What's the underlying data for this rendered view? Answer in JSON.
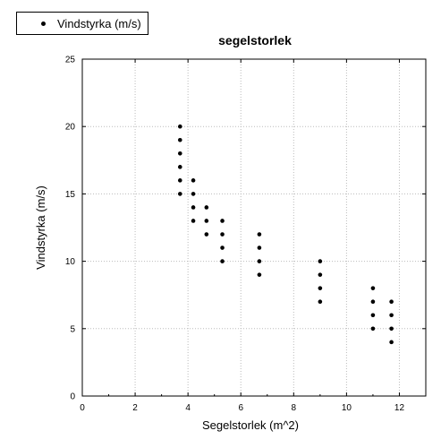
{
  "chart_data": {
    "type": "scatter",
    "title": "segelstorlek",
    "xlabel": "Segelstorlek (m^2)",
    "ylabel": "Vindstyrka (m/s)",
    "xlim": [
      0,
      13
    ],
    "ylim": [
      0,
      25
    ],
    "xticks": [
      0,
      2,
      4,
      6,
      8,
      10,
      12
    ],
    "yticks": [
      0,
      5,
      10,
      15,
      20,
      25
    ],
    "grid": true,
    "legend_position": "top-left",
    "series": [
      {
        "name": "Vindstyrka (m/s)",
        "color": "#000000",
        "points": [
          [
            3.7,
            20
          ],
          [
            3.7,
            19
          ],
          [
            3.7,
            18
          ],
          [
            3.7,
            17
          ],
          [
            3.7,
            16
          ],
          [
            3.7,
            15
          ],
          [
            4.2,
            16
          ],
          [
            4.2,
            15
          ],
          [
            4.2,
            14
          ],
          [
            4.2,
            13
          ],
          [
            4.7,
            14
          ],
          [
            4.7,
            13
          ],
          [
            4.7,
            12
          ],
          [
            5.3,
            13
          ],
          [
            5.3,
            12
          ],
          [
            5.3,
            11
          ],
          [
            5.3,
            10
          ],
          [
            6.7,
            12
          ],
          [
            6.7,
            11
          ],
          [
            6.7,
            10
          ],
          [
            6.7,
            9
          ],
          [
            9.0,
            10
          ],
          [
            9.0,
            9
          ],
          [
            9.0,
            8
          ],
          [
            9.0,
            7
          ],
          [
            11.0,
            8
          ],
          [
            11.0,
            7
          ],
          [
            11.0,
            6
          ],
          [
            11.0,
            5
          ],
          [
            11.7,
            7
          ],
          [
            11.7,
            6
          ],
          [
            11.7,
            5
          ],
          [
            11.7,
            4
          ]
        ]
      }
    ]
  }
}
